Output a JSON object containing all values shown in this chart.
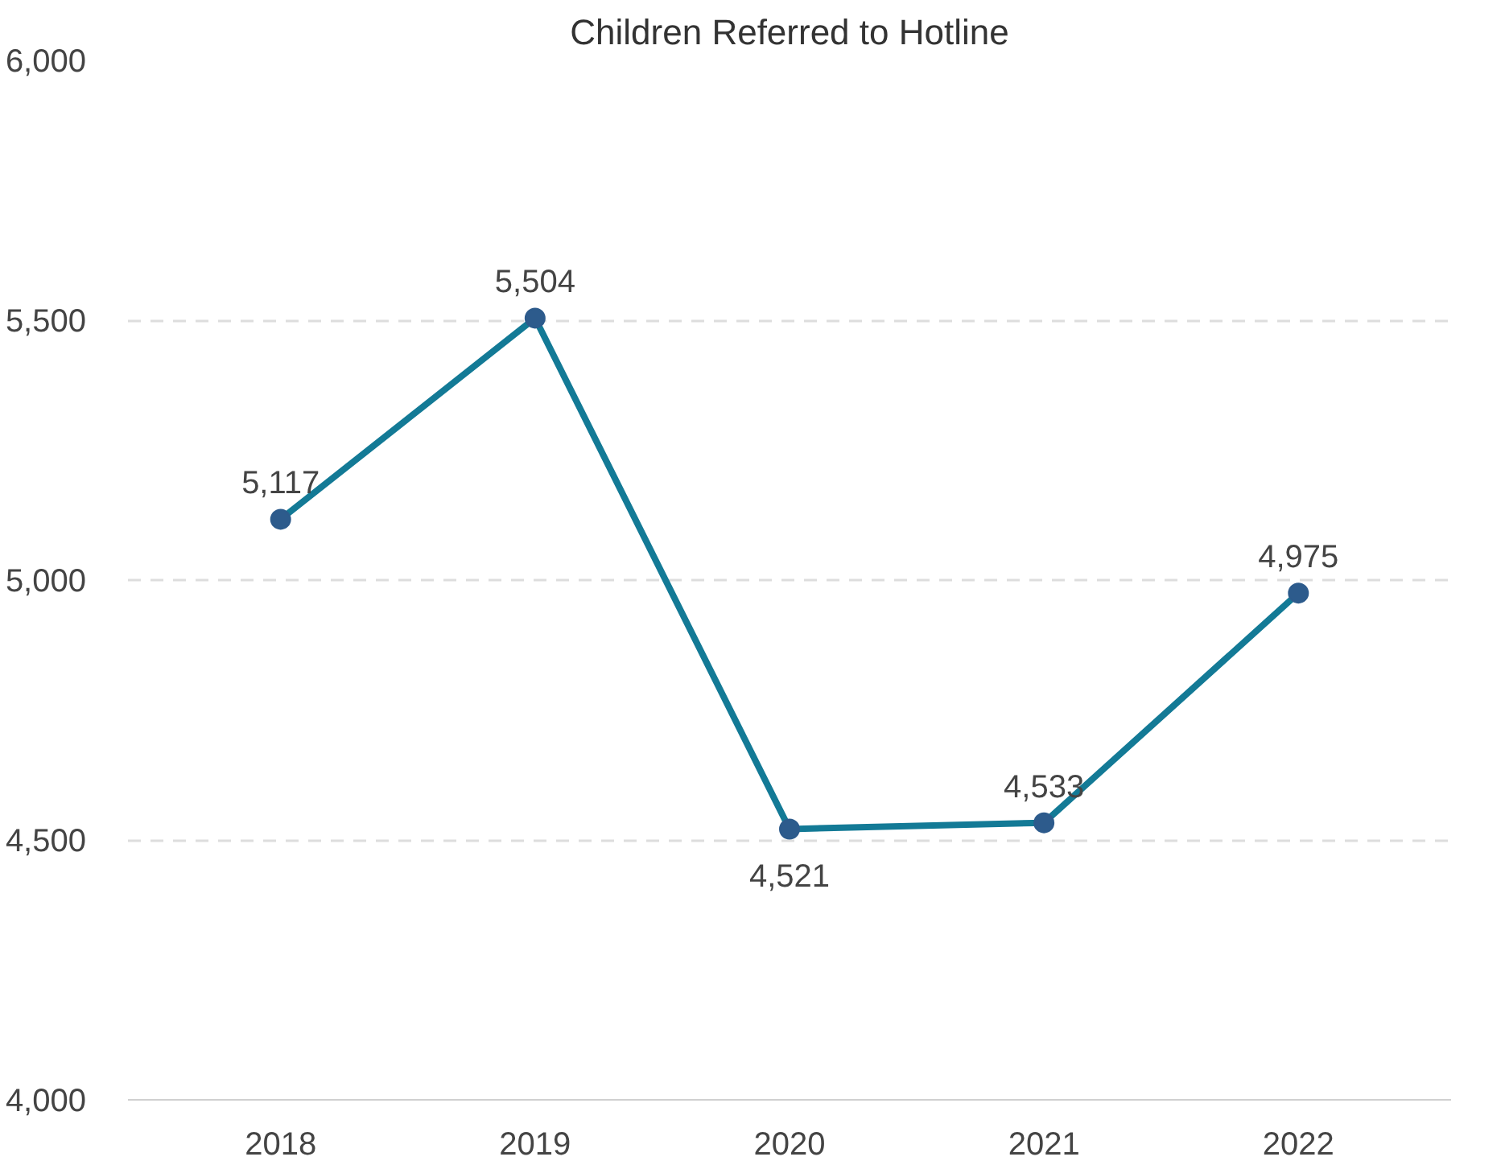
{
  "chart_data": {
    "type": "line",
    "title": "Children Referred to Hotline",
    "categories": [
      "2018",
      "2019",
      "2020",
      "2021",
      "2022"
    ],
    "series": [
      {
        "color": "#137a96",
        "values": [
          5117,
          5504,
          4521,
          4533,
          4975
        ],
        "value_labels": [
          "5,117",
          "5,504",
          "4,521",
          "4,533",
          "4,975"
        ]
      }
    ],
    "ylim": [
      4000,
      6000
    ],
    "yticks": [
      {
        "value": 4000,
        "label": "4,000"
      },
      {
        "value": 4500,
        "label": "4,500"
      },
      {
        "value": 5000,
        "label": "5,000"
      },
      {
        "value": 5500,
        "label": "5,500"
      },
      {
        "value": 6000,
        "label": "6,000"
      }
    ],
    "grid": "y",
    "marker": "circle",
    "line_style": "solid"
  }
}
